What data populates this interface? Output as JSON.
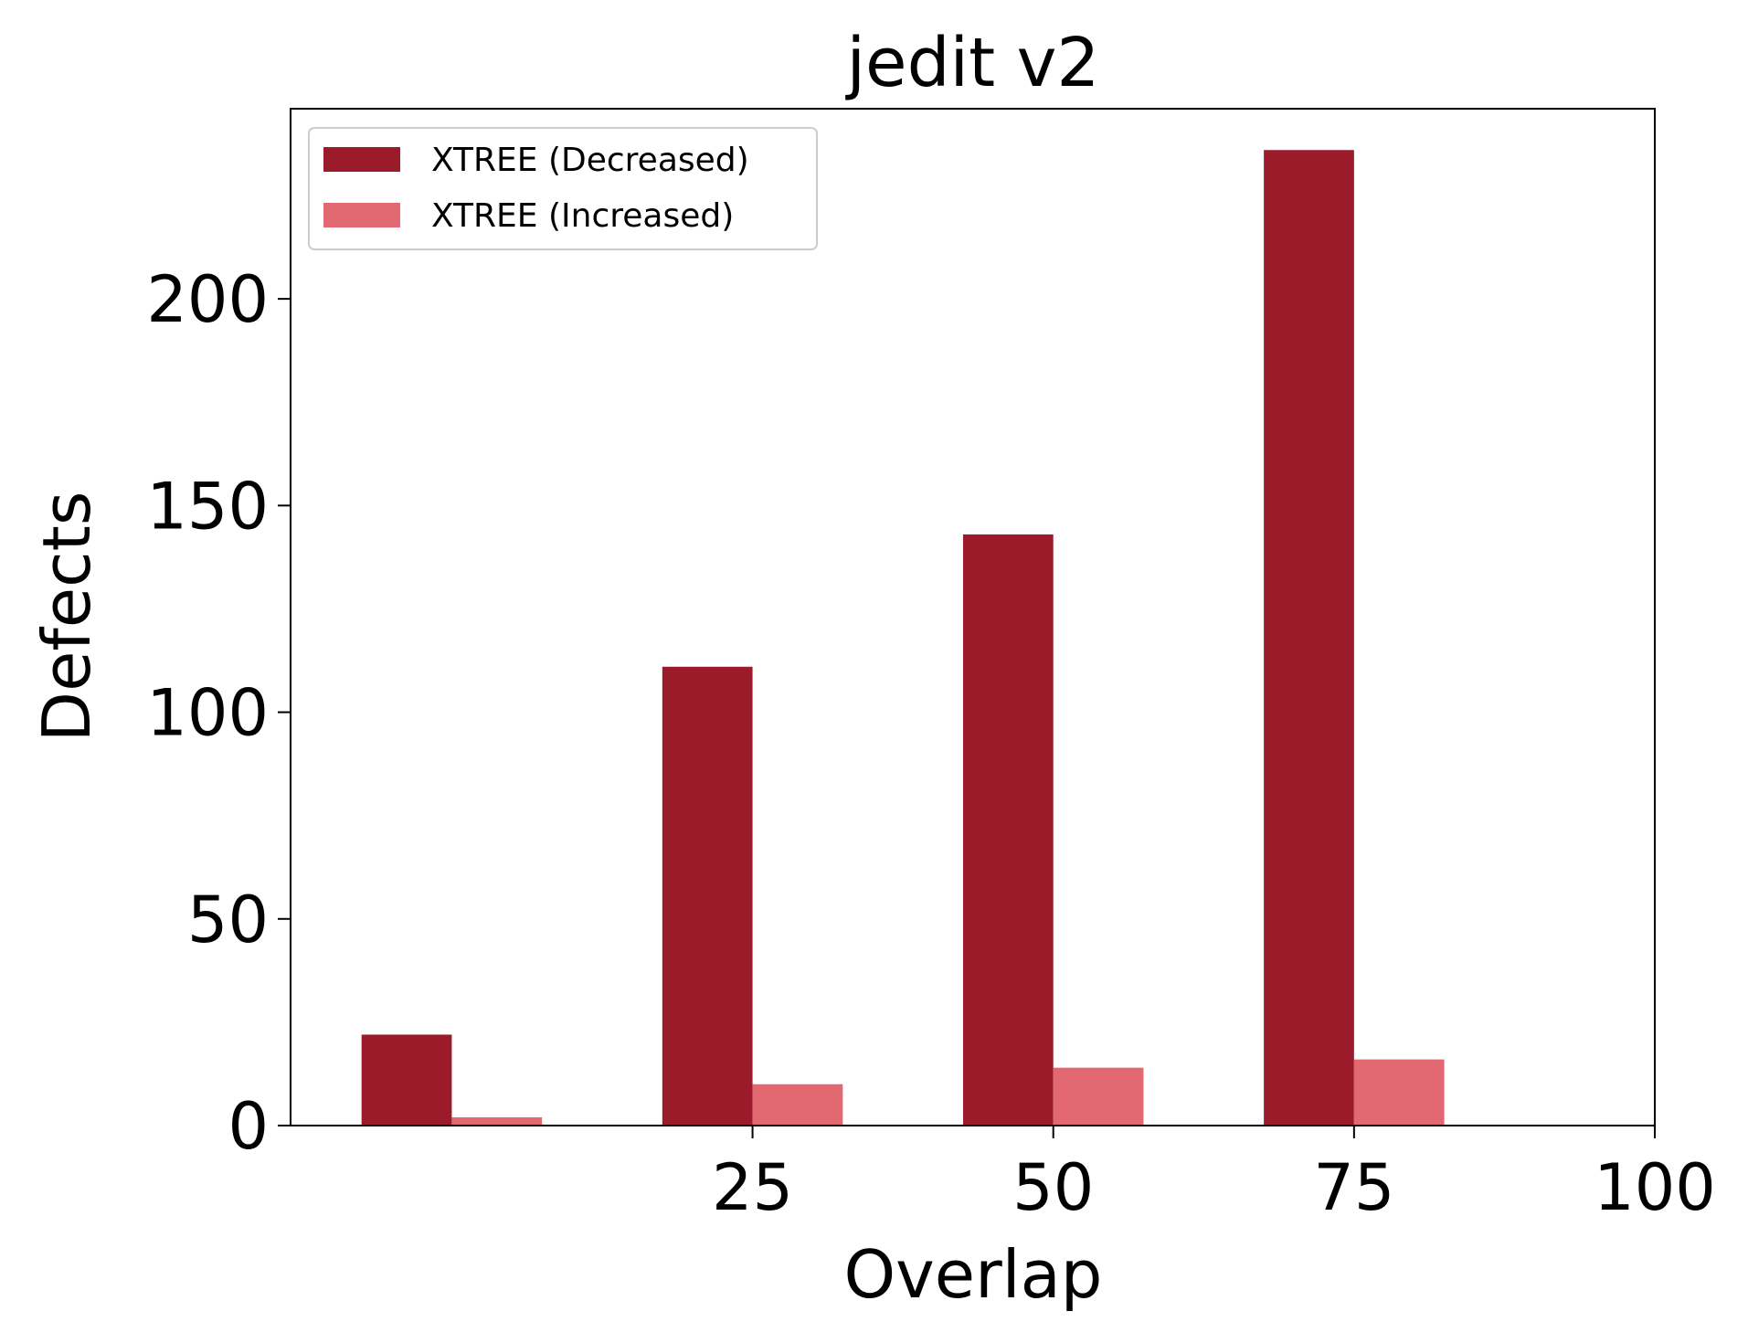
{
  "chart_data": {
    "type": "bar",
    "title": "jedit v2",
    "xlabel": "Overlap",
    "ylabel": "Defects",
    "x_ticks": [
      25,
      50,
      75,
      100
    ],
    "x_range": [
      -13.4,
      100
    ],
    "ylim": [
      0,
      246
    ],
    "y_ticks": [
      0,
      50,
      100,
      150,
      200
    ],
    "grid": false,
    "legend_position": "top-left",
    "series": [
      {
        "name": "XTREE (Decreased)",
        "color": "#9b1b2a",
        "values": [
          22,
          111,
          143,
          236
        ]
      },
      {
        "name": "XTREE (Increased)",
        "color": "#e26872",
        "values": [
          2,
          10,
          14,
          16
        ]
      }
    ]
  }
}
